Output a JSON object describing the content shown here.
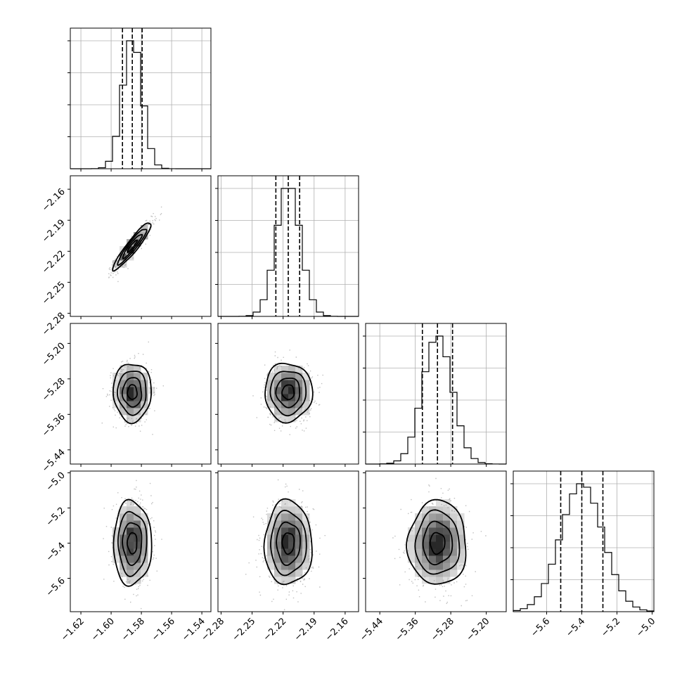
{
  "chart_data": {
    "type": "corner",
    "parameters": [
      {
        "index": 0,
        "label": "",
        "mean": -1.586,
        "std": 0.0063,
        "quantiles": [
          -1.5925,
          -1.586,
          -1.5795
        ],
        "range": [
          -1.627,
          -1.534
        ],
        "ticks": [
          -1.62,
          -1.6,
          -1.58,
          -1.56,
          -1.54
        ],
        "tick_labels": [
          "−1.62",
          "−1.60",
          "−1.58",
          "−1.56",
          "−1.54"
        ]
      },
      {
        "index": 1,
        "label": "",
        "mean": -2.215,
        "std": 0.0115,
        "quantiles": [
          -2.227,
          -2.215,
          -2.204
        ],
        "range": [
          -2.283,
          -2.147
        ],
        "ticks": [
          -2.28,
          -2.25,
          -2.22,
          -2.19,
          -2.16
        ],
        "tick_labels": [
          "−2.28",
          "−2.25",
          "−2.22",
          "−2.19",
          "−2.16"
        ]
      },
      {
        "index": 2,
        "label": "",
        "mean": -5.31,
        "std": 0.033,
        "quantiles": [
          -5.344,
          -5.31,
          -5.276
        ],
        "range": [
          -5.472,
          -5.155
        ],
        "ticks": [
          -5.44,
          -5.36,
          -5.28,
          -5.2
        ],
        "tick_labels": [
          "−5.44",
          "−5.36",
          "−5.28",
          "−5.20"
        ]
      },
      {
        "index": 3,
        "label": "",
        "mean": -5.4,
        "std": 0.12,
        "quantiles": [
          -5.52,
          -5.4,
          -5.28
        ],
        "range": [
          -5.79,
          -4.99
        ],
        "ticks": [
          -5.6,
          -5.4,
          -5.2,
          -5.0
        ],
        "tick_labels": [
          "−5.6",
          "−5.4",
          "−5.2",
          "−5.0"
        ]
      }
    ],
    "correlations": [
      {
        "pair": [
          0,
          1
        ],
        "rho": 0.93
      },
      {
        "pair": [
          0,
          2
        ],
        "rho": 0.0
      },
      {
        "pair": [
          1,
          2
        ],
        "rho": 0.0
      },
      {
        "pair": [
          0,
          3
        ],
        "rho": 0.0
      },
      {
        "pair": [
          1,
          3
        ],
        "rho": 0.0
      },
      {
        "pair": [
          2,
          3
        ],
        "rho": 0.0
      }
    ],
    "histogram_bins": 20,
    "contour_levels_sigma": [
      0.5,
      1.0,
      1.5,
      2.0
    ],
    "grid": true,
    "quantile_line_style": "dashed"
  }
}
